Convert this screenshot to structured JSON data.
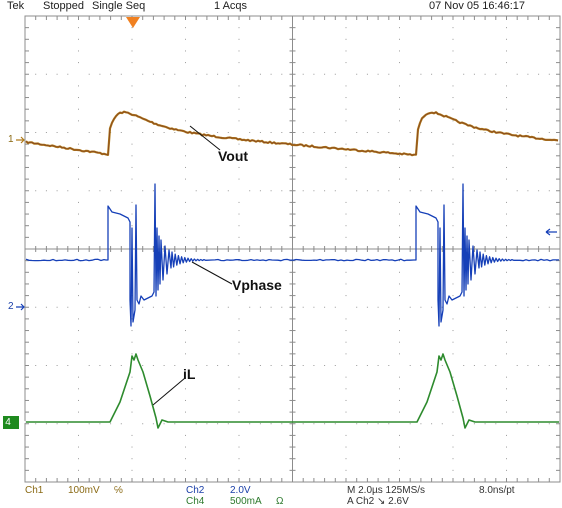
{
  "status": {
    "brand": "Tek",
    "state": "Stopped",
    "mode": "Single Seq",
    "acqs": "1 Acqs",
    "datetime": "07 Nov 05 16:46:17"
  },
  "annotations": {
    "vout": "Vout",
    "vphase": "Vphase",
    "il": "iL"
  },
  "markers": {
    "ch1": "1",
    "ch2": "2",
    "ch4": "4"
  },
  "footer": {
    "ch1_label": "Ch1",
    "ch1_scale": "100mV",
    "ch1_bw": "℅",
    "ch2_label": "Ch2",
    "ch2_scale": "2.0V",
    "ch4_label": "Ch4",
    "ch4_scale": "500mA",
    "ch4_unit": "Ω",
    "timebase": "M 2.0µs 125MS/s",
    "record": "8.0ns/pt",
    "trigger": "A  Ch2  ↘  2.6V"
  },
  "colors": {
    "ch1": "#b07a1a",
    "ch1_core": "#8a4a20",
    "ch2": "#1640b8",
    "ch4": "#2e8b2e",
    "grid": "#9a9a9a",
    "trigger_marker": "#f08020"
  }
}
